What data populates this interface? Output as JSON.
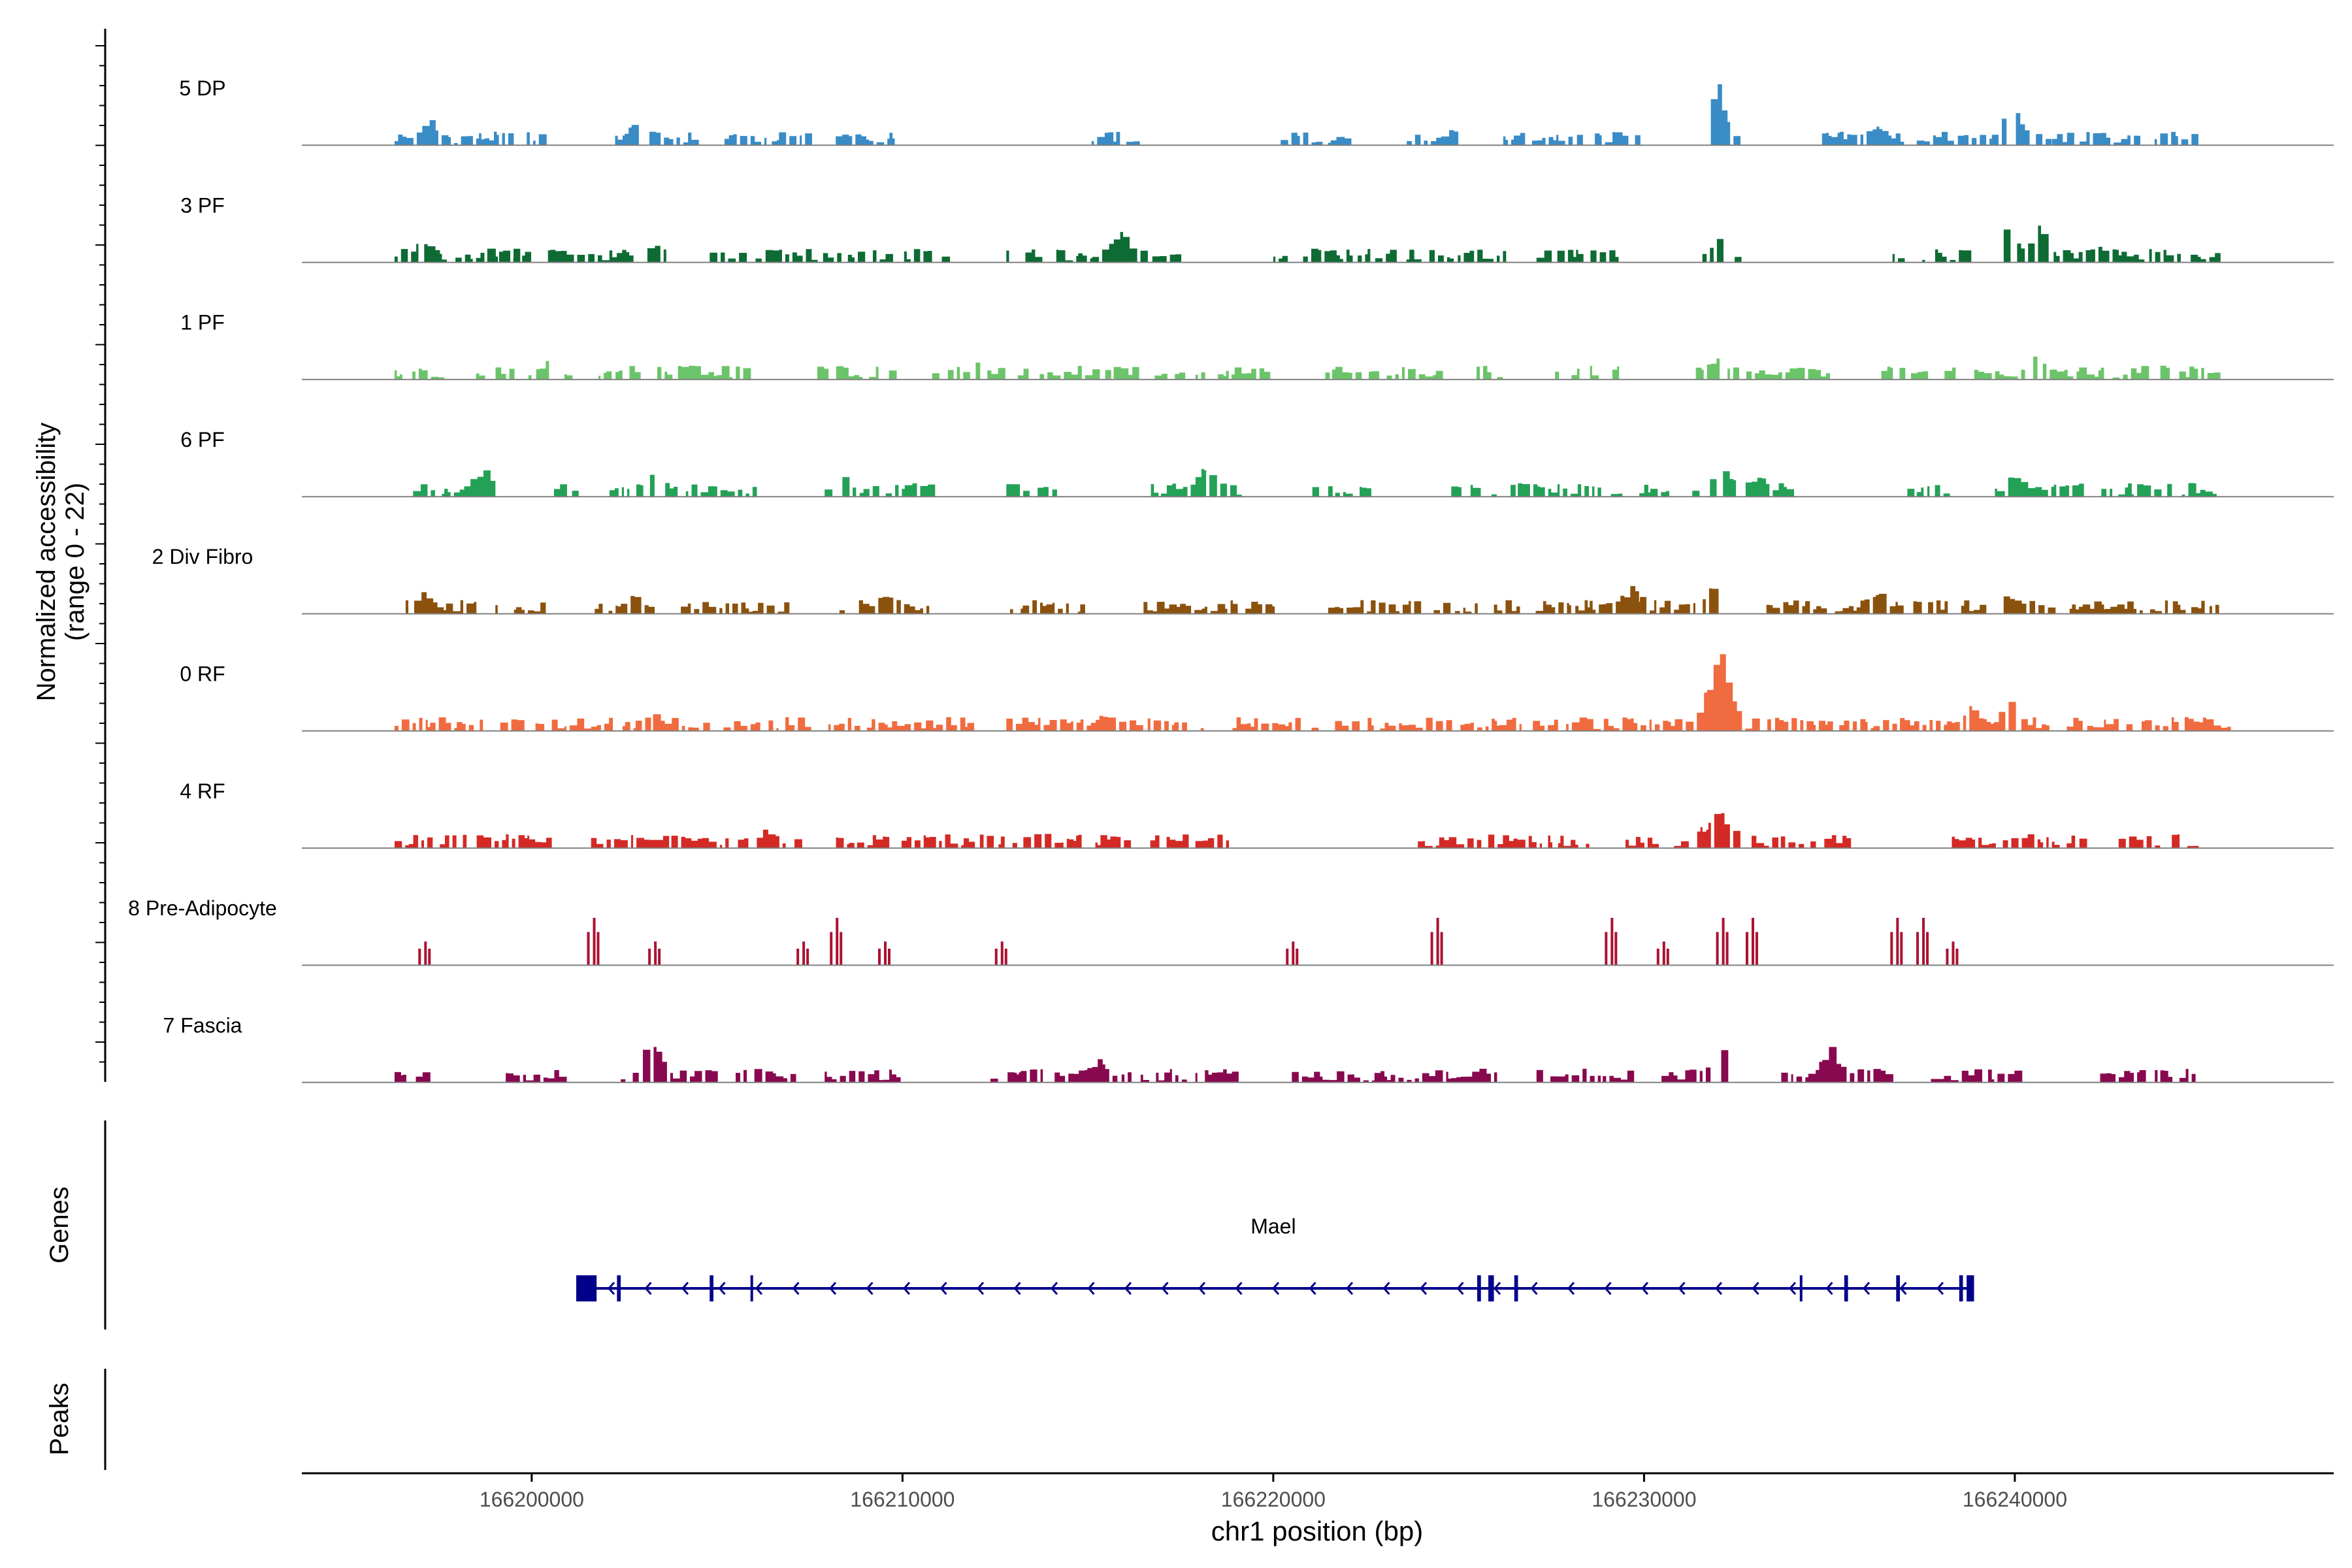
{
  "chart_data": {
    "type": "area",
    "title": "",
    "xlabel": "chr1 position (bp)",
    "ylabel_line1": "Normalized accessibility",
    "ylabel_line2": "(range 0 - 22)",
    "ylim": [
      0,
      22
    ],
    "xlim": [
      166193800,
      166248600
    ],
    "x_ticks": [
      166200000,
      166210000,
      166220000,
      166230000,
      166240000
    ],
    "x_tick_labels": [
      "166200000",
      "166210000",
      "166220000",
      "166230000",
      "166240000"
    ],
    "genes_label": "Genes",
    "peaks_label": "Peaks",
    "series": [
      {
        "name": "5 DP",
        "color": "#3a8cc6",
        "regions": [
          [
            166196300,
            166200300
          ],
          [
            166202100,
            166204500
          ],
          [
            166205200,
            166207500
          ],
          [
            166208200,
            166209800
          ],
          [
            166215100,
            166216400
          ],
          [
            166220200,
            166222000
          ],
          [
            166223600,
            166225000
          ],
          [
            166226200,
            166229900
          ],
          [
            166231800,
            166232500
          ],
          [
            166234800,
            166240900
          ],
          [
            166241000,
            166245000
          ]
        ],
        "peaks": [
          [
            166231900,
            16
          ],
          [
            166197200,
            7
          ],
          [
            166202800,
            6
          ],
          [
            166239900,
            10
          ],
          [
            166236200,
            5
          ],
          [
            166224800,
            5
          ],
          [
            166230000,
            4
          ]
        ]
      },
      {
        "name": "3 PF",
        "color": "#0e6b34",
        "regions": [
          [
            166196300,
            166199600
          ],
          [
            166198800,
            166203600
          ],
          [
            166204800,
            166208800
          ],
          [
            166209200,
            166211200
          ],
          [
            166212800,
            166217500
          ],
          [
            166220000,
            166226200
          ],
          [
            166227100,
            166229300
          ],
          [
            166231200,
            166232500
          ],
          [
            166236700,
            166238800
          ],
          [
            166239700,
            166245500
          ]
        ],
        "peaks": [
          [
            166197000,
            6
          ],
          [
            166215800,
            8
          ],
          [
            166240600,
            10
          ],
          [
            166239800,
            9
          ],
          [
            166232000,
            6
          ],
          [
            166242200,
            5
          ],
          [
            166203200,
            5
          ]
        ]
      },
      {
        "name": "1 PF",
        "color": "#6cc46a",
        "regions": [
          [
            166196300,
            166197600
          ],
          [
            166198500,
            166201000
          ],
          [
            166201800,
            166206000
          ],
          [
            166207700,
            166209700
          ],
          [
            166210800,
            166216200
          ],
          [
            166216800,
            166219900
          ],
          [
            166221400,
            166224500
          ],
          [
            166225200,
            166226200
          ],
          [
            166227600,
            166229400
          ],
          [
            166231200,
            166235100
          ],
          [
            166236400,
            166245500
          ]
        ],
        "peaks": [
          [
            166231900,
            6
          ],
          [
            166240500,
            6
          ],
          [
            166200400,
            5
          ],
          [
            166212000,
            4
          ],
          [
            166234200,
            4
          ],
          [
            166243800,
            4
          ]
        ]
      },
      {
        "name": "6 PF",
        "color": "#23a157",
        "regions": [
          [
            166196800,
            166198900
          ],
          [
            166200600,
            166201400
          ],
          [
            166202100,
            166203400
          ],
          [
            166203600,
            166206100
          ],
          [
            166207900,
            166210900
          ],
          [
            166212800,
            166214200
          ],
          [
            166216700,
            166219300
          ],
          [
            166220900,
            166222600
          ],
          [
            166224800,
            166226100
          ],
          [
            166226400,
            166230600
          ],
          [
            166231300,
            166234000
          ],
          [
            166237100,
            166238300
          ],
          [
            166239200,
            166245400
          ]
        ],
        "peaks": [
          [
            166232100,
            8
          ],
          [
            166198600,
            7
          ],
          [
            166203300,
            7
          ],
          [
            166218100,
            7
          ],
          [
            166233000,
            6
          ],
          [
            166240000,
            6
          ],
          [
            166208300,
            6
          ]
        ]
      },
      {
        "name": "2 Div Fibro",
        "color": "#8b520e",
        "regions": [
          [
            166196600,
            166198500
          ],
          [
            166198800,
            166200300
          ],
          [
            166201700,
            166203200
          ],
          [
            166203800,
            166206900
          ],
          [
            166208300,
            166210700
          ],
          [
            166212900,
            166214800
          ],
          [
            166216500,
            166220000
          ],
          [
            166221200,
            166229900
          ],
          [
            166229700,
            166232200
          ],
          [
            166233300,
            166234800
          ],
          [
            166235000,
            166242500
          ],
          [
            166242200,
            166245500
          ]
        ],
        "peaks": [
          [
            166231900,
            9
          ],
          [
            166229600,
            7
          ],
          [
            166209600,
            6
          ],
          [
            166236200,
            6
          ],
          [
            166197000,
            6
          ],
          [
            166239800,
            5
          ],
          [
            166202700,
            5
          ]
        ]
      },
      {
        "name": "0 RF",
        "color": "#f06b3f",
        "regions": [
          [
            166196300,
            166207500
          ],
          [
            166208000,
            166212000
          ],
          [
            166212800,
            166218200
          ],
          [
            166218900,
            166226900
          ],
          [
            166227000,
            166236800
          ],
          [
            166236900,
            166245800
          ]
        ],
        "peaks": [
          [
            166232000,
            22
          ],
          [
            166231700,
            9
          ],
          [
            166238800,
            6
          ],
          [
            166239800,
            7
          ],
          [
            166215400,
            4
          ],
          [
            166203300,
            4
          ],
          [
            166244600,
            4
          ],
          [
            166235600,
            3
          ]
        ]
      },
      {
        "name": "4 RF",
        "color": "#d42a26",
        "regions": [
          [
            166196300,
            166200600
          ],
          [
            166201600,
            166214800
          ],
          [
            166215200,
            166217800
          ],
          [
            166217900,
            166219000
          ],
          [
            166223900,
            166229400
          ],
          [
            166229500,
            166232500
          ],
          [
            166232900,
            166235500
          ],
          [
            166238300,
            166241800
          ],
          [
            166242800,
            166245000
          ]
        ],
        "peaks": [
          [
            166232000,
            11
          ],
          [
            166231500,
            5
          ],
          [
            166206300,
            5
          ],
          [
            166208000,
            4
          ],
          [
            166213700,
            5
          ],
          [
            166240300,
            4
          ],
          [
            166243000,
            3
          ]
        ]
      },
      {
        "name": "8 Pre-Adipocyte",
        "color": "#ab1232",
        "regions": [
          [
            166196900,
            166197500
          ],
          [
            166201500,
            166201900
          ],
          [
            166203100,
            166203600
          ],
          [
            166207100,
            166207500
          ],
          [
            166207800,
            166208500
          ],
          [
            166209300,
            166209800
          ],
          [
            166212400,
            166212900
          ],
          [
            166220300,
            166220700
          ],
          [
            166224200,
            166224800
          ],
          [
            166228800,
            166229400
          ],
          [
            166230300,
            166230700
          ],
          [
            166231800,
            166232400
          ],
          [
            166232800,
            166233000
          ],
          [
            166236600,
            166237000
          ],
          [
            166237400,
            166237600
          ],
          [
            166238200,
            166238500
          ]
        ],
        "peaks": [
          [
            166197100,
            7
          ],
          [
            166201650,
            14
          ],
          [
            166203300,
            7
          ],
          [
            166207300,
            7
          ],
          [
            166208200,
            14
          ],
          [
            166209500,
            7
          ],
          [
            166212650,
            7
          ],
          [
            166220500,
            7
          ],
          [
            166224400,
            14
          ],
          [
            166229100,
            14
          ],
          [
            166230500,
            7
          ],
          [
            166232100,
            14
          ],
          [
            166232900,
            14
          ],
          [
            166236800,
            14
          ],
          [
            166237500,
            14
          ],
          [
            166238300,
            7
          ]
        ]
      },
      {
        "name": "7 Fascia",
        "color": "#88094f",
        "regions": [
          [
            166196300,
            166197200
          ],
          [
            166199300,
            166200800
          ],
          [
            166202400,
            166205000
          ],
          [
            166205500,
            166207200
          ],
          [
            166207900,
            166209900
          ],
          [
            166212200,
            166217600
          ],
          [
            166217900,
            166219000
          ],
          [
            166220500,
            166226100
          ],
          [
            166227100,
            166229600
          ],
          [
            166230400,
            166232200
          ],
          [
            166233700,
            166236600
          ],
          [
            166237500,
            166240000
          ],
          [
            166242300,
            166245000
          ]
        ],
        "peaks": [
          [
            166203200,
            11
          ],
          [
            166232000,
            9
          ],
          [
            166235000,
            9
          ],
          [
            166215200,
            6
          ],
          [
            166243600,
            5
          ],
          [
            166208600,
            4
          ],
          [
            166236200,
            4
          ]
        ]
      }
    ],
    "gene": {
      "name": "Mael",
      "color": "#00008b",
      "strand": "-",
      "start": 166201200,
      "end": 166238800,
      "exons": [
        [
          166201200,
          166201750
        ],
        [
          166202300,
          166202400
        ],
        [
          166204800,
          166204900
        ],
        [
          166205900,
          166205950
        ],
        [
          166225500,
          166225600
        ],
        [
          166225800,
          166225950
        ],
        [
          166226500,
          166226600
        ],
        [
          166234200,
          166234250
        ],
        [
          166235400,
          166235500
        ],
        [
          166236800,
          166236900
        ],
        [
          166238500,
          166238600
        ],
        [
          166238700,
          166238900
        ]
      ]
    }
  }
}
